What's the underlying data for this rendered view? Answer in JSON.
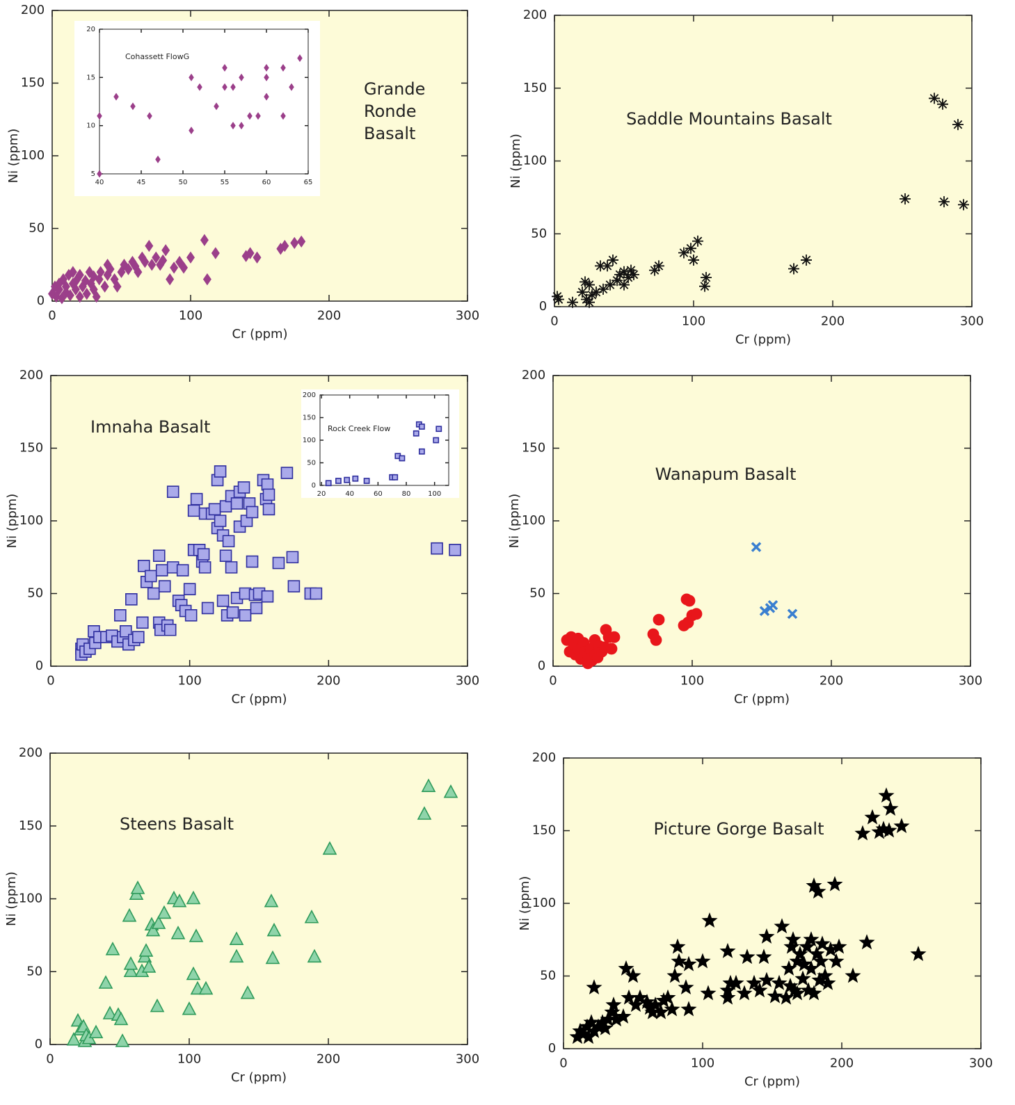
{
  "chart_data": [
    {
      "type": "scatter",
      "title": "Grande Ronde Basalt",
      "xlabel": "Cr (ppm)",
      "ylabel": "Ni (ppm)",
      "xlim": [
        0,
        300
      ],
      "ylim": [
        0,
        200
      ],
      "xticks": [
        0,
        100,
        200,
        300
      ],
      "yticks": [
        0,
        50,
        100,
        150,
        200
      ],
      "series": [
        {
          "color": "#9b3f8a",
          "marker": "diamond",
          "x": [
            0,
            2,
            3,
            5,
            5,
            7,
            8,
            10,
            10,
            12,
            13,
            15,
            15,
            17,
            18,
            20,
            20,
            22,
            24,
            25,
            27,
            28,
            30,
            30,
            32,
            34,
            35,
            38,
            40,
            40,
            42,
            45,
            47,
            50,
            52,
            55,
            58,
            60,
            62,
            65,
            67,
            70,
            72,
            75,
            78,
            80,
            82,
            85,
            88,
            92,
            95,
            100,
            110,
            112,
            118,
            140,
            143,
            148,
            165,
            168,
            175,
            180
          ],
          "values": [
            5,
            10,
            3,
            8,
            12,
            2,
            15,
            6,
            10,
            18,
            4,
            12,
            20,
            8,
            15,
            3,
            18,
            10,
            14,
            5,
            20,
            12,
            8,
            17,
            3,
            15,
            20,
            10,
            18,
            25,
            22,
            15,
            10,
            20,
            25,
            22,
            27,
            24,
            20,
            30,
            27,
            38,
            25,
            30,
            25,
            28,
            35,
            15,
            23,
            27,
            23,
            30,
            42,
            15,
            33,
            31,
            33,
            30,
            36,
            38,
            40,
            41
          ]
        }
      ]
    },
    {
      "type": "scatter",
      "title": "Cohassett FlowG",
      "xlim": [
        40,
        65
      ],
      "ylim": [
        5,
        20
      ],
      "xticks": [
        40,
        45,
        50,
        55,
        60,
        65
      ],
      "yticks": [
        5,
        10,
        15,
        20
      ],
      "series": [
        {
          "color": "#9b3f8a",
          "marker": "diamond",
          "x": [
            40,
            42,
            44,
            46,
            47,
            51,
            51,
            52,
            54,
            55,
            55,
            56,
            56,
            57,
            57,
            58,
            59,
            60,
            60,
            60,
            62,
            62,
            63,
            64,
            40
          ],
          "values": [
            11,
            13,
            12,
            11,
            6.5,
            15,
            9.5,
            14,
            12,
            16,
            14,
            10,
            14,
            15,
            10,
            11,
            11,
            16,
            15,
            13,
            16,
            11,
            14,
            17,
            5
          ]
        }
      ]
    },
    {
      "type": "scatter",
      "title": "Saddle Mountains Basalt",
      "xlabel": "Cr (ppm)",
      "ylabel": "Ni (ppm)",
      "xlim": [
        0,
        300
      ],
      "ylim": [
        0,
        200
      ],
      "xticks": [
        0,
        100,
        200,
        300
      ],
      "yticks": [
        0,
        50,
        100,
        150,
        200
      ],
      "series": [
        {
          "color": "#111111",
          "marker": "asterisk",
          "x": [
            2,
            3,
            13,
            20,
            22,
            23,
            25,
            25,
            27,
            30,
            33,
            35,
            38,
            40,
            42,
            45,
            47,
            50,
            50,
            53,
            55,
            57,
            72,
            75,
            93,
            98,
            100,
            103,
            108,
            109,
            172,
            181,
            252,
            273,
            279,
            290,
            280,
            294
          ],
          "values": [
            7,
            5,
            3,
            10,
            17,
            5,
            15,
            3,
            8,
            10,
            28,
            12,
            28,
            15,
            32,
            18,
            22,
            24,
            15,
            20,
            25,
            22,
            25,
            28,
            37,
            40,
            32,
            45,
            14,
            20,
            26,
            32,
            74,
            143,
            139,
            125,
            72,
            70
          ]
        }
      ]
    },
    {
      "type": "scatter",
      "title": "Imnaha Basalt",
      "xlabel": "Cr (ppm)",
      "ylabel": "Ni (ppm)",
      "xlim": [
        0,
        300
      ],
      "ylim": [
        0,
        200
      ],
      "xticks": [
        0,
        100,
        200,
        300
      ],
      "yticks": [
        0,
        50,
        100,
        150,
        200
      ],
      "series": [
        {
          "color": "#2e2e9e",
          "marker": "square",
          "x": [
            22,
            22,
            23,
            25,
            28,
            31,
            32,
            35,
            40,
            44,
            48,
            50,
            52,
            54,
            56,
            58,
            60,
            63,
            66,
            67,
            69,
            72,
            74,
            78,
            78,
            79,
            80,
            82,
            84,
            86,
            88,
            88,
            92,
            94,
            95,
            97,
            100,
            101,
            103,
            103,
            105,
            107,
            109,
            110,
            111,
            111,
            113,
            116,
            118,
            120,
            120,
            122,
            122,
            124,
            124,
            126,
            126,
            127,
            128,
            130,
            130,
            131,
            134,
            134,
            136,
            136,
            139,
            140,
            140,
            141,
            143,
            145,
            145,
            147,
            148,
            150,
            153,
            155,
            156,
            156,
            157,
            157,
            170,
            164,
            174,
            175,
            187,
            191,
            278,
            291
          ],
          "values": [
            12,
            8,
            15,
            10,
            12,
            24,
            16,
            20,
            20,
            21,
            17,
            35,
            20,
            24,
            15,
            46,
            18,
            20,
            30,
            69,
            58,
            62,
            50,
            76,
            30,
            25,
            66,
            55,
            28,
            25,
            68,
            120,
            45,
            42,
            66,
            38,
            53,
            35,
            80,
            107,
            115,
            80,
            72,
            77,
            68,
            105,
            40,
            105,
            108,
            128,
            95,
            100,
            134,
            90,
            45,
            110,
            76,
            35,
            86,
            68,
            117,
            37,
            47,
            112,
            96,
            120,
            123,
            50,
            35,
            100,
            112,
            106,
            72,
            49,
            40,
            50,
            128,
            115,
            48,
            125,
            118,
            108,
            133,
            71,
            75,
            55,
            50,
            50,
            81,
            80
          ]
        }
      ]
    },
    {
      "type": "scatter",
      "title": "Rock Creek Flow",
      "xlim": [
        19,
        110
      ],
      "ylim": [
        0,
        200
      ],
      "xticks": [
        20,
        40,
        60,
        80,
        100
      ],
      "yticks": [
        0,
        50,
        100,
        150,
        200
      ],
      "series": [
        {
          "color": "#2e2e9e",
          "marker": "square",
          "x": [
            25,
            32,
            38,
            44,
            52,
            70,
            72,
            74,
            77,
            87,
            89,
            91,
            91,
            101,
            103
          ],
          "values": [
            5,
            10,
            12,
            15,
            10,
            18,
            18,
            65,
            60,
            115,
            135,
            130,
            75,
            100,
            125
          ]
        }
      ]
    },
    {
      "type": "scatter",
      "title": "Wanapum Basalt",
      "xlabel": "Cr (ppm)",
      "ylabel": "Ni (ppm)",
      "xlim": [
        0,
        300
      ],
      "ylim": [
        0,
        200
      ],
      "xticks": [
        0,
        100,
        200,
        300
      ],
      "yticks": [
        0,
        50,
        100,
        150,
        200
      ],
      "series": [
        {
          "color": "#e8161b",
          "marker": "circle",
          "x": [
            10,
            12,
            13,
            15,
            16,
            18,
            18,
            20,
            22,
            23,
            25,
            25,
            27,
            28,
            30,
            30,
            32,
            33,
            35,
            37,
            38,
            40,
            42,
            44,
            72,
            74,
            76,
            94,
            96,
            97,
            98,
            100,
            103
          ],
          "values": [
            18,
            10,
            20,
            15,
            8,
            12,
            19,
            5,
            16,
            10,
            2,
            7,
            12,
            4,
            18,
            8,
            6,
            14,
            10,
            13,
            25,
            20,
            12,
            20,
            22,
            18,
            32,
            28,
            46,
            30,
            45,
            35,
            36
          ]
        },
        {
          "color": "#3a7fd0",
          "marker": "cross",
          "x": [
            146,
            152,
            156,
            158,
            172
          ],
          "values": [
            82,
            38,
            40,
            42,
            36
          ]
        }
      ]
    },
    {
      "type": "scatter",
      "title": "Steens Basalt",
      "xlabel": "Cr (ppm)",
      "ylabel": "Ni (ppm)",
      "xlim": [
        0,
        300
      ],
      "ylim": [
        0,
        200
      ],
      "xticks": [
        0,
        100,
        200,
        300
      ],
      "yticks": [
        0,
        50,
        100,
        150,
        200
      ],
      "series": [
        {
          "color": "#2e9a5a",
          "marker": "triangle",
          "x": [
            17,
            20,
            22,
            24,
            25,
            26,
            28,
            33,
            40,
            43,
            45,
            49,
            51,
            52,
            57,
            58,
            58,
            62,
            63,
            66,
            68,
            69,
            71,
            73,
            74,
            77,
            78,
            82,
            89,
            92,
            93,
            100,
            103,
            103,
            105,
            106,
            112,
            134,
            134,
            142,
            159,
            160,
            161,
            188,
            190,
            201,
            269,
            272,
            288
          ],
          "values": [
            3,
            16,
            10,
            12,
            2,
            6,
            4,
            8,
            42,
            21,
            65,
            20,
            17,
            2,
            88,
            50,
            55,
            103,
            107,
            50,
            60,
            64,
            53,
            82,
            78,
            26,
            83,
            90,
            100,
            76,
            98,
            24,
            100,
            48,
            74,
            38,
            38,
            72,
            60,
            35,
            98,
            59,
            78,
            87,
            60,
            134,
            158,
            177,
            173
          ]
        }
      ]
    },
    {
      "type": "scatter",
      "title": "Picture Gorge Basalt",
      "xlabel": "Cr (ppm)",
      "ylabel": "Ni (ppm)",
      "xlim": [
        0,
        300
      ],
      "ylim": [
        0,
        200
      ],
      "xticks": [
        0,
        100,
        200,
        300
      ],
      "yticks": [
        0,
        50,
        100,
        150,
        200
      ],
      "series": [
        {
          "color": "#000000",
          "marker": "star",
          "x": [
            10,
            12,
            14,
            17,
            18,
            20,
            22,
            22,
            25,
            28,
            30,
            32,
            35,
            36,
            38,
            43,
            45,
            47,
            50,
            52,
            55,
            60,
            62,
            64,
            66,
            70,
            72,
            75,
            78,
            80,
            82,
            83,
            90,
            88,
            90,
            100,
            104,
            105,
            118,
            118,
            118,
            120,
            124,
            130,
            132,
            137,
            141,
            144,
            146,
            146,
            152,
            155,
            157,
            160,
            162,
            163,
            164,
            165,
            166,
            168,
            168,
            170,
            172,
            173,
            175,
            176,
            178,
            178,
            180,
            180,
            182,
            183,
            184,
            185,
            186,
            188,
            190,
            192,
            195,
            196,
            198,
            208,
            218,
            215,
            222,
            227,
            230,
            232,
            234,
            235,
            243,
            255
          ],
          "values": [
            8,
            12,
            10,
            15,
            8,
            18,
            12,
            42,
            15,
            18,
            14,
            20,
            25,
            30,
            20,
            22,
            55,
            35,
            50,
            30,
            35,
            32,
            28,
            25,
            30,
            25,
            33,
            35,
            27,
            50,
            70,
            60,
            58,
            42,
            27,
            60,
            38,
            88,
            35,
            40,
            67,
            45,
            45,
            38,
            63,
            45,
            40,
            63,
            47,
            77,
            36,
            45,
            84,
            35,
            55,
            43,
            70,
            75,
            40,
            38,
            60,
            65,
            48,
            58,
            70,
            40,
            55,
            75,
            112,
            38,
            65,
            108,
            47,
            60,
            72,
            50,
            45,
            68,
            113,
            60,
            70,
            50,
            73,
            148,
            159,
            149,
            151,
            174,
            150,
            165,
            153,
            65
          ]
        }
      ]
    }
  ]
}
